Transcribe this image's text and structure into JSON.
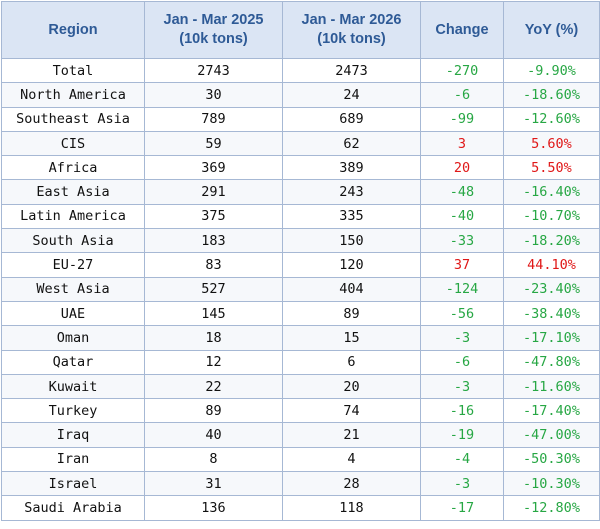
{
  "colors": {
    "header_bg": "#dbe5f4",
    "header_text": "#2e5a96",
    "grid": "#a6b8d4",
    "negative": "#27a744",
    "positive": "#e01818",
    "text": "#111111"
  },
  "chart_data": {
    "type": "table",
    "columns": [
      {
        "key": "region",
        "label": "Region",
        "sub": ""
      },
      {
        "key": "q2025",
        "label": "Jan - Mar 2025",
        "sub": "(10k tons)"
      },
      {
        "key": "q2026",
        "label": "Jan - Mar 2026",
        "sub": "(10k tons)"
      },
      {
        "key": "change",
        "label": "Change",
        "sub": ""
      },
      {
        "key": "yoy",
        "label": "YoY (%)",
        "sub": ""
      }
    ],
    "rows": [
      {
        "region": "Total",
        "q2025": "2743",
        "q2026": "2473",
        "change": "-270",
        "yoy": "-9.90%",
        "sign": "neg"
      },
      {
        "region": "North America",
        "q2025": "30",
        "q2026": "24",
        "change": "-6",
        "yoy": "-18.60%",
        "sign": "neg"
      },
      {
        "region": "Southeast Asia",
        "q2025": "789",
        "q2026": "689",
        "change": "-99",
        "yoy": "-12.60%",
        "sign": "neg"
      },
      {
        "region": "CIS",
        "q2025": "59",
        "q2026": "62",
        "change": "3",
        "yoy": "5.60%",
        "sign": "pos"
      },
      {
        "region": "Africa",
        "q2025": "369",
        "q2026": "389",
        "change": "20",
        "yoy": "5.50%",
        "sign": "pos"
      },
      {
        "region": "East Asia",
        "q2025": "291",
        "q2026": "243",
        "change": "-48",
        "yoy": "-16.40%",
        "sign": "neg"
      },
      {
        "region": "Latin America",
        "q2025": "375",
        "q2026": "335",
        "change": "-40",
        "yoy": "-10.70%",
        "sign": "neg"
      },
      {
        "region": "South Asia",
        "q2025": "183",
        "q2026": "150",
        "change": "-33",
        "yoy": "-18.20%",
        "sign": "neg"
      },
      {
        "region": "EU-27",
        "q2025": "83",
        "q2026": "120",
        "change": "37",
        "yoy": "44.10%",
        "sign": "pos"
      },
      {
        "region": "West Asia",
        "q2025": "527",
        "q2026": "404",
        "change": "-124",
        "yoy": "-23.40%",
        "sign": "neg"
      },
      {
        "region": "UAE",
        "q2025": "145",
        "q2026": "89",
        "change": "-56",
        "yoy": "-38.40%",
        "sign": "neg"
      },
      {
        "region": "Oman",
        "q2025": "18",
        "q2026": "15",
        "change": "-3",
        "yoy": "-17.10%",
        "sign": "neg"
      },
      {
        "region": "Qatar",
        "q2025": "12",
        "q2026": "6",
        "change": "-6",
        "yoy": "-47.80%",
        "sign": "neg"
      },
      {
        "region": "Kuwait",
        "q2025": "22",
        "q2026": "20",
        "change": "-3",
        "yoy": "-11.60%",
        "sign": "neg"
      },
      {
        "region": "Turkey",
        "q2025": "89",
        "q2026": "74",
        "change": "-16",
        "yoy": "-17.40%",
        "sign": "neg"
      },
      {
        "region": "Iraq",
        "q2025": "40",
        "q2026": "21",
        "change": "-19",
        "yoy": "-47.00%",
        "sign": "neg"
      },
      {
        "region": "Iran",
        "q2025": "8",
        "q2026": "4",
        "change": "-4",
        "yoy": "-50.30%",
        "sign": "neg"
      },
      {
        "region": "Israel",
        "q2025": "31",
        "q2026": "28",
        "change": "-3",
        "yoy": "-10.30%",
        "sign": "neg"
      },
      {
        "region": "Saudi Arabia",
        "q2025": "136",
        "q2026": "118",
        "change": "-17",
        "yoy": "-12.80%",
        "sign": "neg"
      }
    ]
  }
}
